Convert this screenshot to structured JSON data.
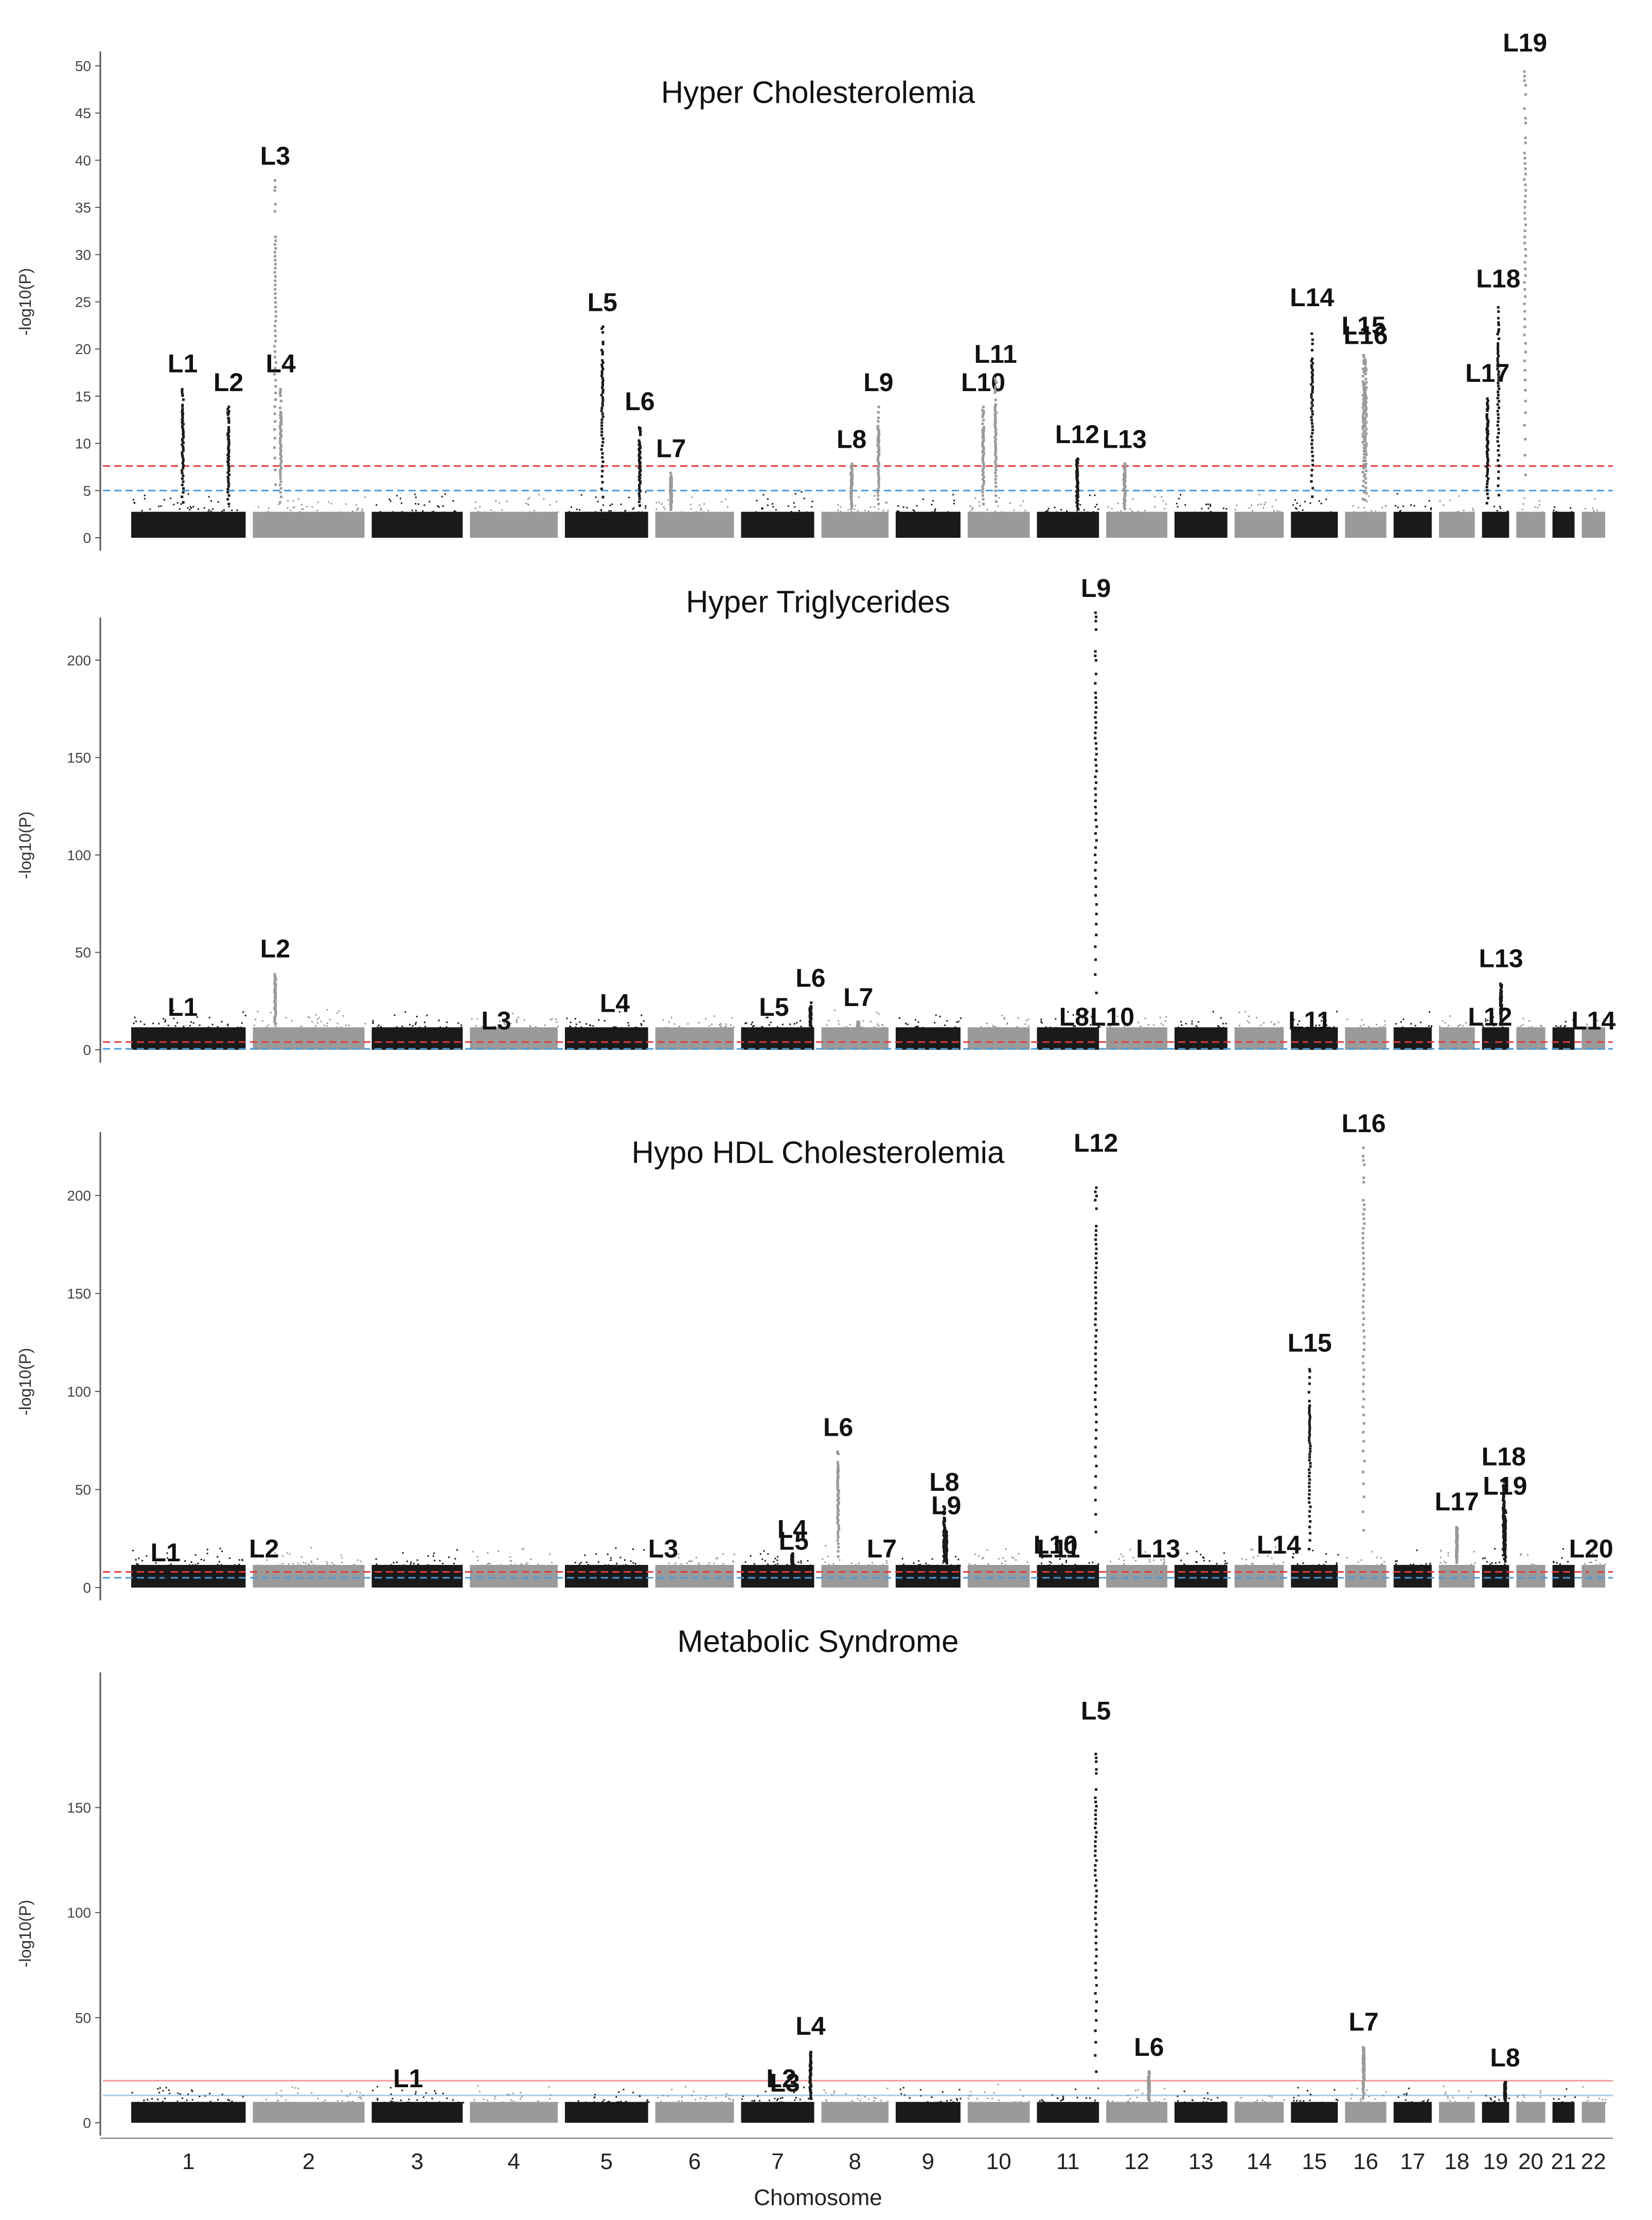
{
  "figure": {
    "x_axis_label": "Chomosome",
    "chromosomes": [
      "1",
      "2",
      "3",
      "4",
      "5",
      "6",
      "7",
      "8",
      "9",
      "10",
      "11",
      "12",
      "13",
      "14",
      "15",
      "16",
      "17",
      "18",
      "19",
      "20",
      "21",
      "22"
    ],
    "colors": {
      "dark": "#1a1a1a",
      "light": "#9a9a9a",
      "threshold_red": "#e23b3b",
      "threshold_blue": "#4a9ad8"
    }
  },
  "chart_data": [
    {
      "type": "scatter",
      "title": "Hyper Cholesterolemia",
      "ylabel": "-log10(P)",
      "ylim": [
        0,
        50
      ],
      "yticks": [
        0,
        5,
        10,
        15,
        20,
        25,
        30,
        35,
        40,
        45,
        50
      ],
      "thresholds": {
        "red": 7.6,
        "blue": 5.0
      },
      "line_style": "dashed",
      "peaks": [
        {
          "label": "L1",
          "chromosome": 1,
          "pos": 0.45,
          "value": 16
        },
        {
          "label": "L2",
          "chromosome": 1,
          "pos": 0.85,
          "value": 14
        },
        {
          "label": "L3",
          "chromosome": 2,
          "pos": 0.2,
          "value": 38
        },
        {
          "label": "L4",
          "chromosome": 2,
          "pos": 0.25,
          "value": 16
        },
        {
          "label": "L5",
          "chromosome": 5,
          "pos": 0.45,
          "value": 22.5
        },
        {
          "label": "L6",
          "chromosome": 5,
          "pos": 0.9,
          "value": 12
        },
        {
          "label": "L7",
          "chromosome": 6,
          "pos": 0.2,
          "value": 7
        },
        {
          "label": "L8",
          "chromosome": 8,
          "pos": 0.45,
          "value": 8
        },
        {
          "label": "L9",
          "chromosome": 8,
          "pos": 0.85,
          "value": 14
        },
        {
          "label": "L10",
          "chromosome": 10,
          "pos": 0.25,
          "value": 14
        },
        {
          "label": "L11",
          "chromosome": 10,
          "pos": 0.45,
          "value": 17
        },
        {
          "label": "L12",
          "chromosome": 11,
          "pos": 0.65,
          "value": 8.5
        },
        {
          "label": "L13",
          "chromosome": 12,
          "pos": 0.3,
          "value": 8
        },
        {
          "label": "L14",
          "chromosome": 15,
          "pos": 0.45,
          "value": 23
        },
        {
          "label": "L15",
          "chromosome": 16,
          "pos": 0.45,
          "value": 20
        },
        {
          "label": "L16",
          "chromosome": 16,
          "pos": 0.5,
          "value": 19
        },
        {
          "label": "L17",
          "chromosome": 19,
          "pos": 0.2,
          "value": 15
        },
        {
          "label": "L18",
          "chromosome": 19,
          "pos": 0.6,
          "value": 25
        },
        {
          "label": "L19",
          "chromosome": 20,
          "pos": 0.3,
          "value": 50
        }
      ]
    },
    {
      "type": "scatter",
      "title": "Hyper Triglycerides",
      "ylabel": "-log10(P)",
      "ylim": [
        0,
        210
      ],
      "yticks": [
        0,
        50,
        100,
        150,
        200
      ],
      "thresholds": {
        "red": 4.0,
        "blue": 0.5
      },
      "line_style": "dashed",
      "peaks": [
        {
          "label": "L1",
          "chromosome": 1,
          "pos": 0.45,
          "value": 10
        },
        {
          "label": "L2",
          "chromosome": 2,
          "pos": 0.2,
          "value": 40
        },
        {
          "label": "L3",
          "chromosome": 4,
          "pos": 0.3,
          "value": 3
        },
        {
          "label": "L4",
          "chromosome": 5,
          "pos": 0.6,
          "value": 12
        },
        {
          "label": "L5",
          "chromosome": 7,
          "pos": 0.45,
          "value": 10
        },
        {
          "label": "L6",
          "chromosome": 7,
          "pos": 0.95,
          "value": 25
        },
        {
          "label": "L7",
          "chromosome": 8,
          "pos": 0.55,
          "value": 15
        },
        {
          "label": "L8",
          "chromosome": 11,
          "pos": 0.6,
          "value": 5
        },
        {
          "label": "L9",
          "chromosome": 11,
          "pos": 0.95,
          "value": 225
        },
        {
          "label": "L10",
          "chromosome": 12,
          "pos": 0.1,
          "value": 5
        },
        {
          "label": "L11",
          "chromosome": 15,
          "pos": 0.4,
          "value": 3
        },
        {
          "label": "L12",
          "chromosome": 19,
          "pos": 0.3,
          "value": 5
        },
        {
          "label": "L13",
          "chromosome": 19,
          "pos": 0.7,
          "value": 35
        },
        {
          "label": "L14",
          "chromosome": 22,
          "pos": 0.5,
          "value": 3
        }
      ]
    },
    {
      "type": "scatter",
      "title": "Hypo HDL Cholesterolemia",
      "ylabel": "-log10(P)",
      "ylim": [
        0,
        210
      ],
      "yticks": [
        0,
        50,
        100,
        150,
        200
      ],
      "thresholds": {
        "red": 8.0,
        "blue": 5.0
      },
      "line_style": "dashed",
      "peaks": [
        {
          "label": "L1",
          "chromosome": 1,
          "pos": 0.3,
          "value": 6
        },
        {
          "label": "L2",
          "chromosome": 2,
          "pos": 0.1,
          "value": 8
        },
        {
          "label": "L3",
          "chromosome": 6,
          "pos": 0.1,
          "value": 8
        },
        {
          "label": "L4",
          "chromosome": 7,
          "pos": 0.7,
          "value": 18
        },
        {
          "label": "L5",
          "chromosome": 7,
          "pos": 0.72,
          "value": 12
        },
        {
          "label": "L6",
          "chromosome": 8,
          "pos": 0.25,
          "value": 70
        },
        {
          "label": "L7",
          "chromosome": 8,
          "pos": 0.9,
          "value": 8
        },
        {
          "label": "L8",
          "chromosome": 9,
          "pos": 0.75,
          "value": 42
        },
        {
          "label": "L9",
          "chromosome": 9,
          "pos": 0.78,
          "value": 30
        },
        {
          "label": "L10",
          "chromosome": 11,
          "pos": 0.3,
          "value": 10
        },
        {
          "label": "L11",
          "chromosome": 11,
          "pos": 0.35,
          "value": 8
        },
        {
          "label": "L12",
          "chromosome": 11,
          "pos": 0.95,
          "value": 215
        },
        {
          "label": "L13",
          "chromosome": 12,
          "pos": 0.85,
          "value": 8
        },
        {
          "label": "L14",
          "chromosome": 14,
          "pos": 0.9,
          "value": 10
        },
        {
          "label": "L15",
          "chromosome": 15,
          "pos": 0.4,
          "value": 113
        },
        {
          "label": "L16",
          "chromosome": 16,
          "pos": 0.45,
          "value": 225
        },
        {
          "label": "L17",
          "chromosome": 18,
          "pos": 0.5,
          "value": 32
        },
        {
          "label": "L18",
          "chromosome": 19,
          "pos": 0.8,
          "value": 55
        },
        {
          "label": "L19",
          "chromosome": 19,
          "pos": 0.85,
          "value": 40
        },
        {
          "label": "L20",
          "chromosome": 22,
          "pos": 0.4,
          "value": 8
        }
      ]
    },
    {
      "type": "scatter",
      "title": "Metabolic Syndrome",
      "ylabel": "-log10(P)",
      "ylim": [
        0,
        180
      ],
      "yticks": [
        0,
        50,
        100,
        150
      ],
      "thresholds": {
        "red": 20.0,
        "blue": 13.0
      },
      "line_style": "solid",
      "peaks": [
        {
          "label": "L1",
          "chromosome": 3,
          "pos": 0.4,
          "value": 10
        },
        {
          "label": "L2",
          "chromosome": 7,
          "pos": 0.55,
          "value": 10
        },
        {
          "label": "L3",
          "chromosome": 7,
          "pos": 0.6,
          "value": 8
        },
        {
          "label": "L4",
          "chromosome": 7,
          "pos": 0.95,
          "value": 35
        },
        {
          "label": "L5",
          "chromosome": 11,
          "pos": 0.95,
          "value": 185
        },
        {
          "label": "L6",
          "chromosome": 12,
          "pos": 0.7,
          "value": 25
        },
        {
          "label": "L7",
          "chromosome": 16,
          "pos": 0.45,
          "value": 37
        },
        {
          "label": "L8",
          "chromosome": 19,
          "pos": 0.85,
          "value": 20
        }
      ]
    }
  ]
}
